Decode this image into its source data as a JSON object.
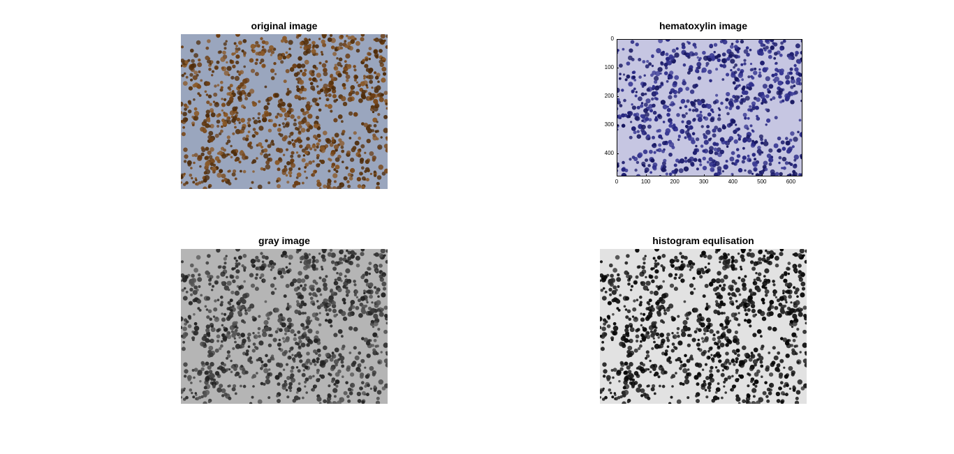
{
  "panels": [
    {
      "title": "original image",
      "image": "he-stained-tissue-micrograph",
      "palette": {
        "background": "#9aa6be",
        "cells": [
          "#5a3510",
          "#6b3e15",
          "#7a4a1d",
          "#4e2c0b",
          "#8a5a2a"
        ]
      }
    },
    {
      "title": "hematoxylin image",
      "image": "hematoxylin-channel-micrograph",
      "palette": {
        "background": "#c6c6e2",
        "cells": [
          "#1d1d6e",
          "#262680",
          "#30308c",
          "#171760",
          "#3a3a95"
        ]
      },
      "x_ticks": [
        "0",
        "100",
        "200",
        "300",
        "400",
        "500",
        "600"
      ],
      "y_ticks": [
        "0",
        "100",
        "200",
        "300",
        "400"
      ]
    },
    {
      "title": "gray image",
      "image": "grayscale-micrograph",
      "palette": {
        "background": "#b5b5b5",
        "cells": [
          "#2b2b2b",
          "#3a3a3a",
          "#474747",
          "#555555",
          "#222222"
        ]
      }
    },
    {
      "title": "histogram equlisation",
      "image": "histogram-equalized-micrograph",
      "palette": {
        "background": "#e2e2e2",
        "cells": [
          "#050505",
          "#111111",
          "#1e1e1e",
          "#2a2a2a",
          "#0a0a0a"
        ]
      }
    }
  ]
}
